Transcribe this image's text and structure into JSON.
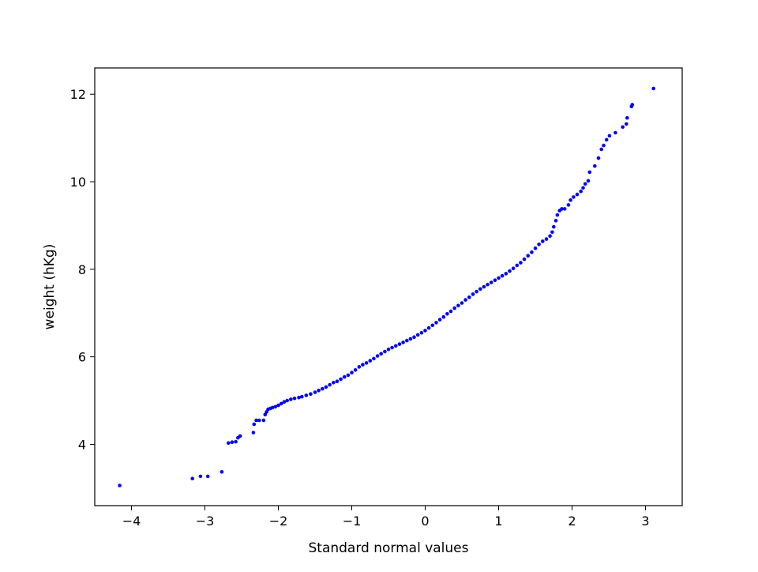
{
  "chart_data": {
    "type": "scatter",
    "xlabel": "Standard normal values",
    "ylabel": "weight (hKg)",
    "xlim": [
      -4.5,
      3.5
    ],
    "ylim": [
      2.6,
      12.6
    ],
    "xticks": [
      {
        "value": -4,
        "label": "−4"
      },
      {
        "value": -3,
        "label": "−3"
      },
      {
        "value": -2,
        "label": "−2"
      },
      {
        "value": -1,
        "label": "−1"
      },
      {
        "value": 0,
        "label": "0"
      },
      {
        "value": 1,
        "label": "1"
      },
      {
        "value": 2,
        "label": "2"
      },
      {
        "value": 3,
        "label": "3"
      }
    ],
    "yticks": [
      {
        "value": 4,
        "label": "4"
      },
      {
        "value": 6,
        "label": "6"
      },
      {
        "value": 8,
        "label": "8"
      },
      {
        "value": 10,
        "label": "10"
      },
      {
        "value": 12,
        "label": "12"
      }
    ],
    "grid": false,
    "color": "#0000ff",
    "series": [
      {
        "points": [
          [
            -4.16,
            3.06
          ],
          [
            -3.17,
            3.22
          ],
          [
            -3.06,
            3.27
          ],
          [
            -2.96,
            3.27
          ],
          [
            -2.77,
            3.37
          ],
          [
            -2.68,
            4.03
          ],
          [
            -2.63,
            4.05
          ],
          [
            -2.58,
            4.06
          ],
          [
            -2.55,
            4.15
          ],
          [
            -2.52,
            4.19
          ],
          [
            -2.34,
            4.27
          ],
          [
            -2.33,
            4.46
          ],
          [
            -2.3,
            4.55
          ],
          [
            -2.26,
            4.55
          ],
          [
            -2.2,
            4.55
          ],
          [
            -2.18,
            4.68
          ],
          [
            -2.16,
            4.74
          ],
          [
            -2.14,
            4.8
          ],
          [
            -2.11,
            4.82
          ],
          [
            -2.08,
            4.84
          ],
          [
            -2.04,
            4.86
          ],
          [
            -2.0,
            4.89
          ],
          [
            -1.96,
            4.93
          ],
          [
            -1.92,
            4.97
          ],
          [
            -1.88,
            5.0
          ],
          [
            -1.83,
            5.03
          ],
          [
            -1.78,
            5.05
          ],
          [
            -1.72,
            5.07
          ],
          [
            -1.68,
            5.09
          ],
          [
            -1.62,
            5.12
          ],
          [
            -1.56,
            5.15
          ],
          [
            -1.5,
            5.19
          ],
          [
            -1.45,
            5.23
          ],
          [
            -1.4,
            5.27
          ],
          [
            -1.35,
            5.31
          ],
          [
            -1.3,
            5.36
          ],
          [
            -1.25,
            5.41
          ],
          [
            -1.2,
            5.44
          ],
          [
            -1.15,
            5.49
          ],
          [
            -1.1,
            5.54
          ],
          [
            -1.05,
            5.58
          ],
          [
            -1.0,
            5.64
          ],
          [
            -0.95,
            5.7
          ],
          [
            -0.9,
            5.77
          ],
          [
            -0.85,
            5.82
          ],
          [
            -0.8,
            5.86
          ],
          [
            -0.75,
            5.91
          ],
          [
            -0.7,
            5.96
          ],
          [
            -0.65,
            6.02
          ],
          [
            -0.6,
            6.07
          ],
          [
            -0.55,
            6.12
          ],
          [
            -0.5,
            6.17
          ],
          [
            -0.45,
            6.21
          ],
          [
            -0.4,
            6.25
          ],
          [
            -0.35,
            6.29
          ],
          [
            -0.3,
            6.33
          ],
          [
            -0.25,
            6.37
          ],
          [
            -0.2,
            6.41
          ],
          [
            -0.15,
            6.45
          ],
          [
            -0.1,
            6.5
          ],
          [
            -0.05,
            6.55
          ],
          [
            0.0,
            6.6
          ],
          [
            0.05,
            6.66
          ],
          [
            0.1,
            6.72
          ],
          [
            0.15,
            6.78
          ],
          [
            0.2,
            6.85
          ],
          [
            0.25,
            6.91
          ],
          [
            0.3,
            6.98
          ],
          [
            0.35,
            7.04
          ],
          [
            0.4,
            7.11
          ],
          [
            0.45,
            7.17
          ],
          [
            0.5,
            7.23
          ],
          [
            0.55,
            7.3
          ],
          [
            0.6,
            7.36
          ],
          [
            0.65,
            7.43
          ],
          [
            0.7,
            7.49
          ],
          [
            0.75,
            7.55
          ],
          [
            0.8,
            7.6
          ],
          [
            0.85,
            7.65
          ],
          [
            0.9,
            7.7
          ],
          [
            0.95,
            7.75
          ],
          [
            1.0,
            7.8
          ],
          [
            1.05,
            7.85
          ],
          [
            1.1,
            7.9
          ],
          [
            1.15,
            7.96
          ],
          [
            1.2,
            8.02
          ],
          [
            1.25,
            8.09
          ],
          [
            1.3,
            8.15
          ],
          [
            1.35,
            8.23
          ],
          [
            1.4,
            8.31
          ],
          [
            1.45,
            8.39
          ],
          [
            1.5,
            8.48
          ],
          [
            1.55,
            8.57
          ],
          [
            1.6,
            8.64
          ],
          [
            1.65,
            8.69
          ],
          [
            1.7,
            8.76
          ],
          [
            1.73,
            8.85
          ],
          [
            1.75,
            8.97
          ],
          [
            1.78,
            9.11
          ],
          [
            1.8,
            9.24
          ],
          [
            1.83,
            9.34
          ],
          [
            1.86,
            9.38
          ],
          [
            1.9,
            9.38
          ],
          [
            1.95,
            9.47
          ],
          [
            1.98,
            9.58
          ],
          [
            2.02,
            9.65
          ],
          [
            2.07,
            9.71
          ],
          [
            2.12,
            9.78
          ],
          [
            2.15,
            9.86
          ],
          [
            2.18,
            9.95
          ],
          [
            2.22,
            10.02
          ],
          [
            2.24,
            10.22
          ],
          [
            2.31,
            10.36
          ],
          [
            2.36,
            10.54
          ],
          [
            2.4,
            10.74
          ],
          [
            2.43,
            10.83
          ],
          [
            2.47,
            10.96
          ],
          [
            2.51,
            11.05
          ],
          [
            2.59,
            11.12
          ],
          [
            2.69,
            11.25
          ],
          [
            2.74,
            11.32
          ],
          [
            2.75,
            11.46
          ],
          [
            2.81,
            11.72
          ],
          [
            2.82,
            11.76
          ],
          [
            3.11,
            12.13
          ]
        ]
      }
    ]
  }
}
